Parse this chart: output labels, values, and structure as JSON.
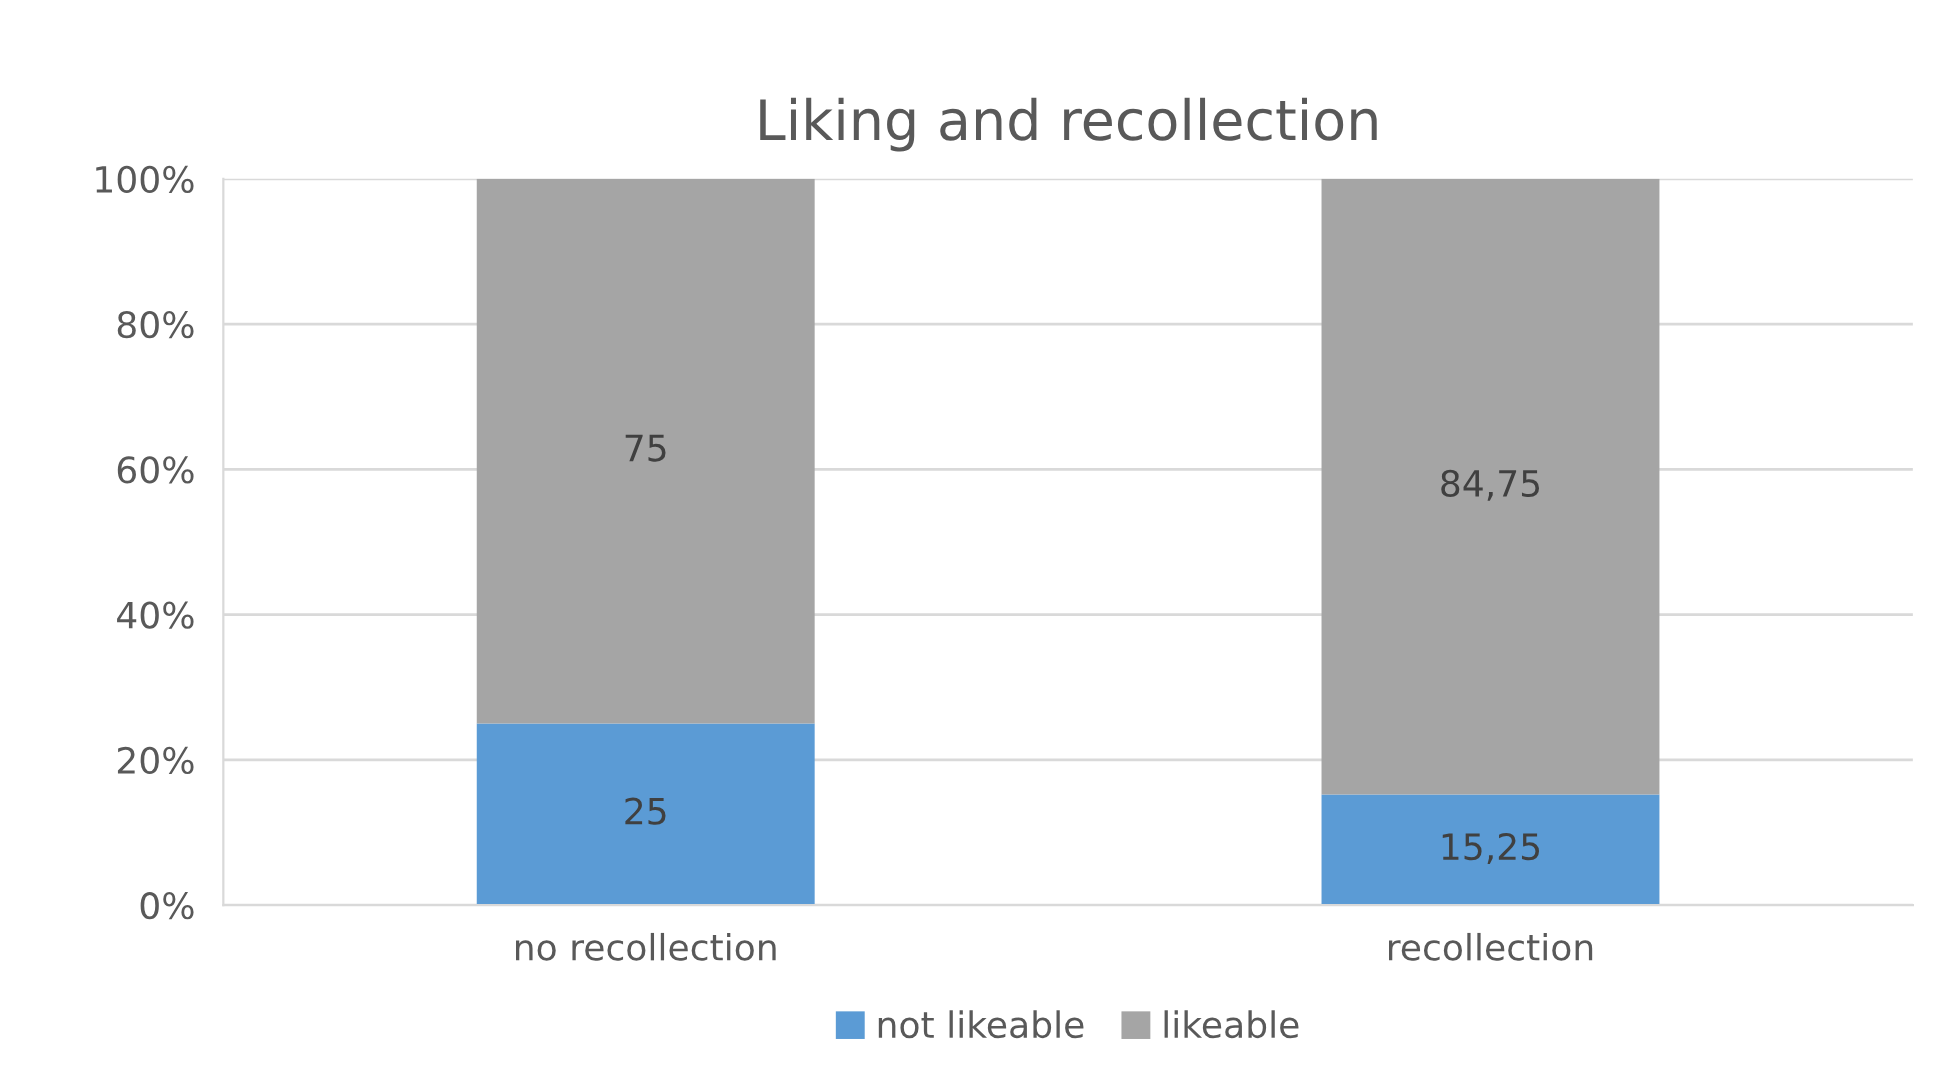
{
  "chart_data": {
    "type": "bar",
    "title": "Liking and recollection",
    "stacked": true,
    "categories": [
      "no recollection",
      "recollection"
    ],
    "series": [
      {
        "name": "not likeable",
        "color": "#5b9bd5",
        "values": [
          25,
          15.25
        ],
        "value_labels": [
          "25",
          "15,25"
        ]
      },
      {
        "name": "likeable",
        "color": "#a5a5a5",
        "values": [
          75,
          84.75
        ],
        "value_labels": [
          "75",
          "84,75"
        ]
      }
    ],
    "ylim": [
      0,
      100
    ],
    "yticks": [
      {
        "value": 0,
        "label": "0%"
      },
      {
        "value": 20,
        "label": "20%"
      },
      {
        "value": 40,
        "label": "40%"
      },
      {
        "value": 60,
        "label": "60%"
      },
      {
        "value": 80,
        "label": "80%"
      },
      {
        "value": 100,
        "label": "100%"
      }
    ],
    "grid": "y",
    "legend": "bottom"
  }
}
